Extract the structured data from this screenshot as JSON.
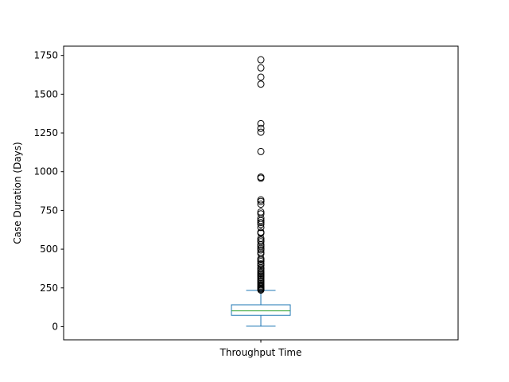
{
  "chart_data": {
    "type": "box",
    "title": "",
    "xlabel": "",
    "ylabel": "Case Duration (Days)",
    "categories": [
      "Throughput Time"
    ],
    "ylim": [
      -85,
      1810
    ],
    "yticks": [
      0,
      250,
      500,
      750,
      1000,
      1250,
      1500,
      1750
    ],
    "grid": false,
    "box": {
      "whisker_low": 3,
      "q1": 73,
      "median": 102,
      "q3": 141,
      "whisker_high": 234
    },
    "outliers": [
      1722,
      1670,
      1610,
      1565,
      1310,
      1280,
      1255,
      1130,
      965,
      958,
      818,
      808,
      790,
      740,
      728,
      700,
      685,
      672,
      660,
      640,
      610,
      603,
      570,
      558,
      548,
      530,
      520,
      505,
      495,
      480,
      470,
      440,
      430,
      420,
      405,
      395,
      380,
      372,
      360,
      350,
      342,
      333,
      325,
      316,
      305,
      296,
      287,
      278,
      270,
      262,
      255,
      248,
      242,
      236
    ],
    "colors": {
      "box": "#1f77b4",
      "median": "#2ca02c",
      "outlier": "#000000",
      "axes": "#000000"
    }
  }
}
